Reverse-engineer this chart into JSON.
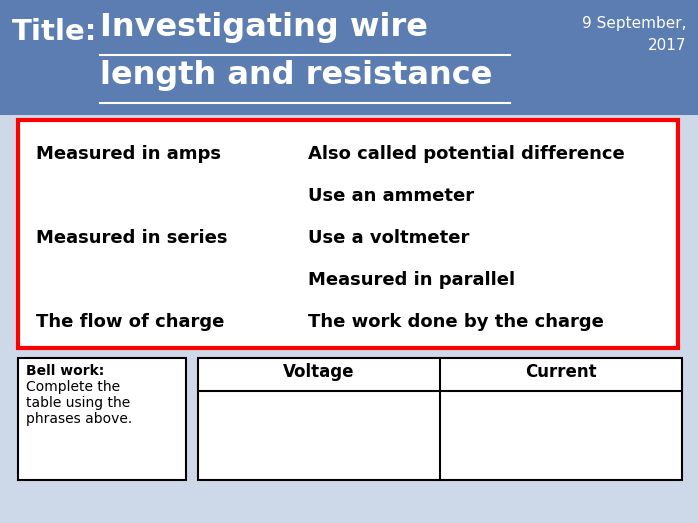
{
  "title_label": "Title:",
  "title_text_line1": "Investigating wire",
  "title_text_line2": "length and resistance",
  "date_line1": "9 September,",
  "date_line2": "2017",
  "header_bg_color": "#5b7db1",
  "body_bg_color": "#cdd8e8",
  "red_box_lines": [
    [
      "Measured in amps",
      "Also called potential difference"
    ],
    [
      "",
      "Use an ammeter"
    ],
    [
      "Measured in series",
      "Use a voltmeter"
    ],
    [
      "",
      "Measured in parallel"
    ],
    [
      "The flow of charge",
      "The work done by the charge"
    ]
  ],
  "bell_work_title": "Bell work:",
  "bell_work_body": "Complete the\ntable using the\nphrases above.",
  "table_headers": [
    "Voltage",
    "Current"
  ]
}
